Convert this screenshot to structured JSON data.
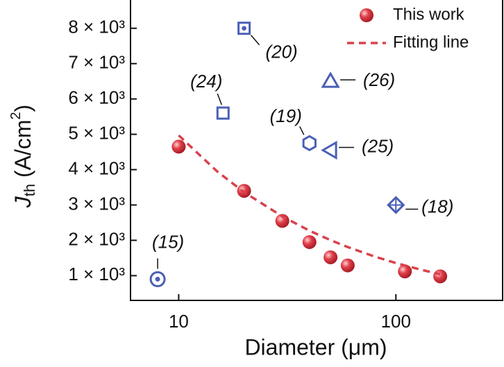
{
  "chart_data": {
    "type": "scatter",
    "xlabel": "Diameter (μm)",
    "ylabel": [
      "J",
      "th",
      " (A/cm",
      "2",
      ")"
    ],
    "xscale": "log",
    "xlim": [
      6,
      310
    ],
    "xticks": [
      10,
      100
    ],
    "ylim": [
      300,
      8800
    ],
    "yticks": [
      {
        "value": 1000,
        "label": "1 × 10³"
      },
      {
        "value": 2000,
        "label": "2 × 10³"
      },
      {
        "value": 3000,
        "label": "3 × 10³"
      },
      {
        "value": 4000,
        "label": "4 × 10³"
      },
      {
        "value": 5000,
        "label": "5 × 10³"
      },
      {
        "value": 6000,
        "label": "6 × 10³"
      },
      {
        "value": 7000,
        "label": "7 × 10³"
      },
      {
        "value": 8000,
        "label": "8 × 10³"
      }
    ],
    "legend": "upper right",
    "series": [
      {
        "name": "This work",
        "type": "scatter",
        "color": "#e0404a",
        "x": [
          10,
          20,
          30,
          40,
          50,
          60,
          110,
          160
        ],
        "values": [
          4650,
          3400,
          2550,
          1950,
          1520,
          1290,
          1120,
          980
        ]
      },
      {
        "name": "Fitting line",
        "type": "line",
        "dash": true,
        "color": "#d9414c",
        "x": [
          10,
          15,
          20,
          30,
          40,
          50,
          60,
          80,
          100,
          130,
          160
        ],
        "values": [
          4970,
          3955,
          3362,
          2678,
          2272,
          2005,
          1810,
          1539,
          1357,
          1170,
          1040
        ]
      }
    ],
    "references": {
      "color": "#4a5fb5",
      "points": [
        {
          "label": "(15)",
          "x": 8,
          "y": 900,
          "marker": "circle-dot"
        },
        {
          "label": "(24)",
          "x": 16,
          "y": 5600,
          "marker": "square"
        },
        {
          "label": "(20)",
          "x": 20,
          "y": 8000,
          "marker": "square-dot"
        },
        {
          "label": "(26)",
          "x": 50,
          "y": 6500,
          "marker": "triangle-up"
        },
        {
          "label": "(19)",
          "x": 40,
          "y": 4750,
          "marker": "hexagon"
        },
        {
          "label": "(25)",
          "x": 50,
          "y": 4550,
          "marker": "triangle-left"
        },
        {
          "label": "(18)",
          "x": 100,
          "y": 3000,
          "marker": "diamond-plus"
        }
      ]
    }
  }
}
